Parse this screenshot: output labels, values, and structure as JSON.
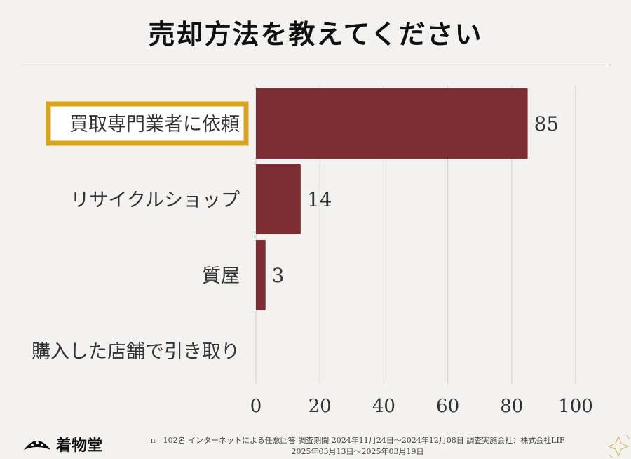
{
  "page": {
    "title": "売却方法を教えてください"
  },
  "chart_data": {
    "type": "bar",
    "orientation": "horizontal",
    "categories": [
      "買取専門業者に依頼",
      "リサイクルショップ",
      "質屋",
      "購入した店舗で引き取り"
    ],
    "values": [
      85,
      14,
      3,
      0
    ],
    "value_labels": [
      "85",
      "14",
      "3",
      ""
    ],
    "highlighted_category": "買取専門業者に依頼",
    "xlim": [
      0,
      100
    ],
    "xticks": [
      "0",
      "20",
      "40",
      "60",
      "80",
      "100"
    ],
    "grid": "vertical",
    "colors": {
      "bar": "#7b2d31",
      "highlight_border": "#d9a520",
      "grid": "#cfcfcf"
    }
  },
  "footer": {
    "brand": "着物堂",
    "note_line1": "n＝102名 インターネットによる任意回答 調査期間 2024年11月24日～2024年12月08日 調査実施会社：株式会社LIF",
    "note_line2": "2025年03月13日～2025年03月19日"
  }
}
